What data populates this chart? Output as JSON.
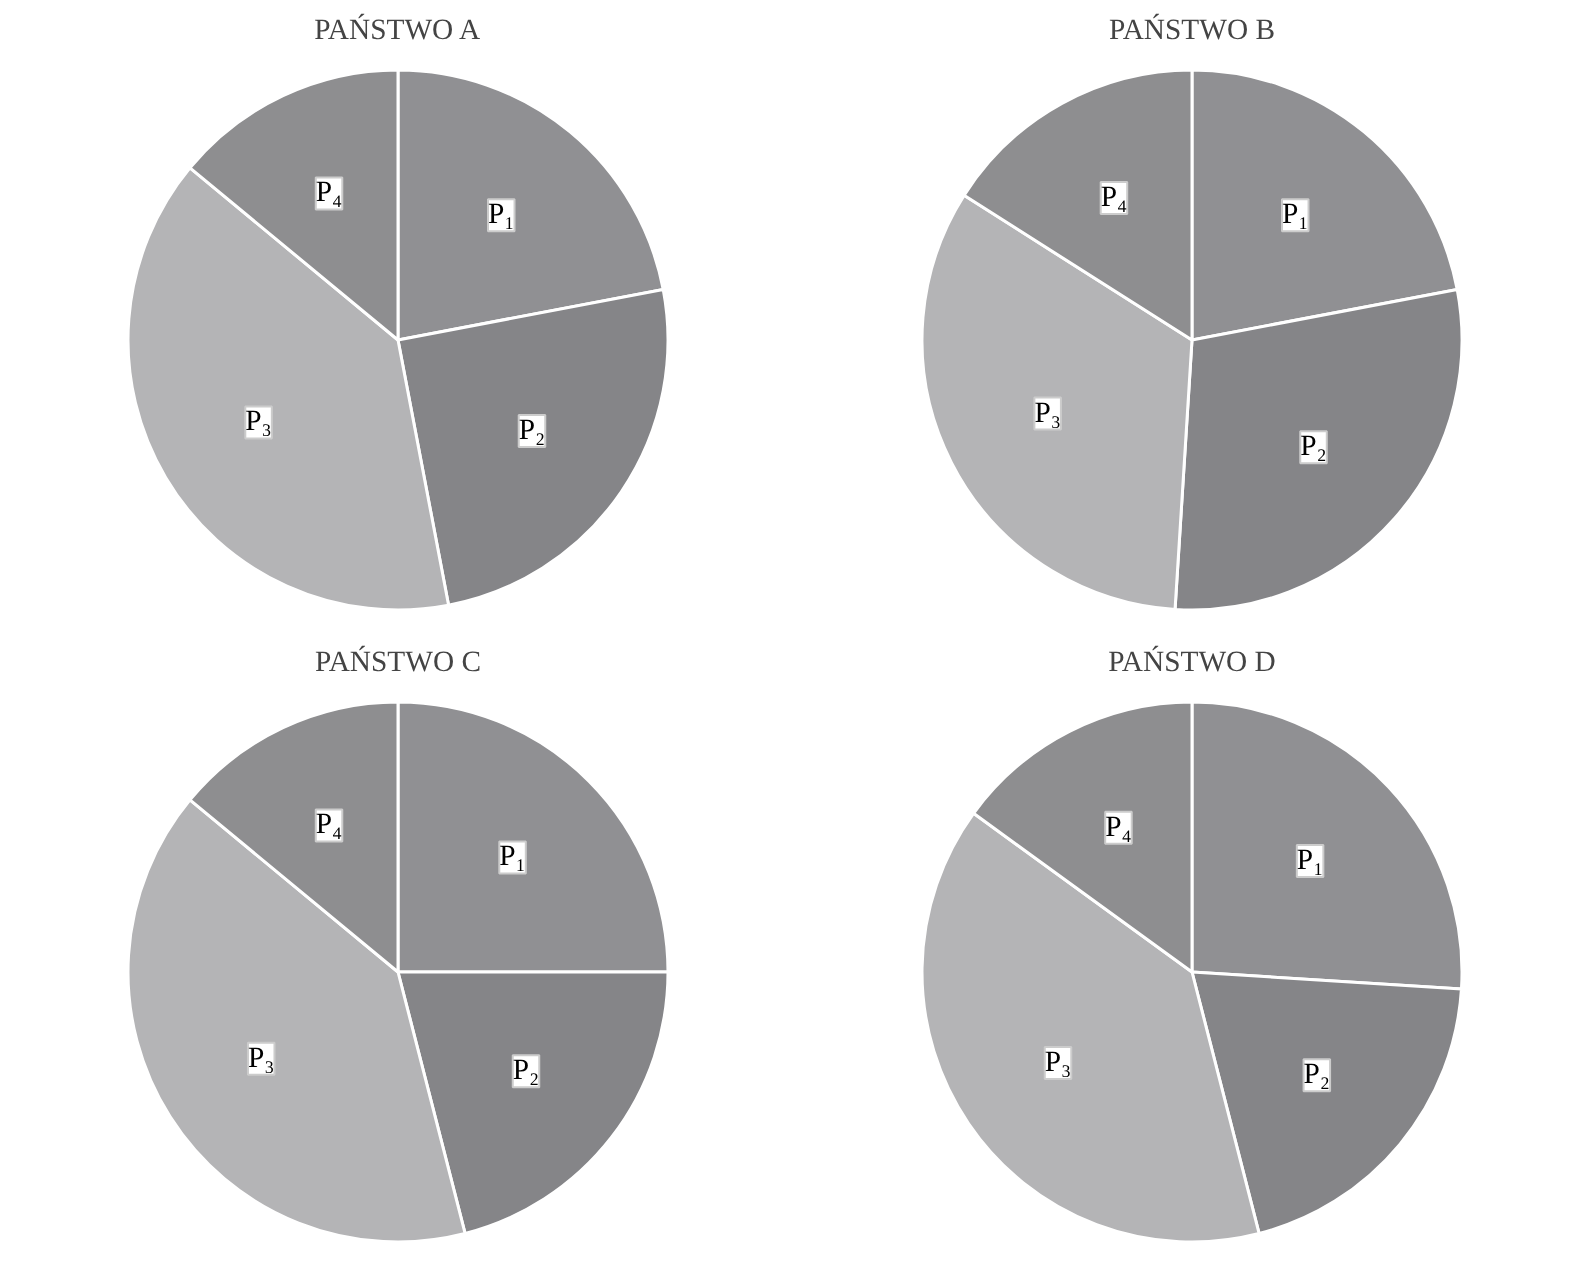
{
  "chart_data": [
    {
      "type": "pie",
      "title": "PAŃSTWO A",
      "categories": [
        "P₁",
        "P₂",
        "P₃",
        "P₄"
      ],
      "values": [
        22,
        25,
        39,
        14
      ],
      "colors": [
        "#909093",
        "#858588",
        "#b4b4b6",
        "#8e8e90"
      ]
    },
    {
      "type": "pie",
      "title": "PAŃSTWO B",
      "categories": [
        "P₁",
        "P₂",
        "P₃",
        "P₄"
      ],
      "values": [
        22,
        29,
        33,
        16
      ],
      "colors": [
        "#909093",
        "#858588",
        "#b4b4b6",
        "#8e8e90"
      ]
    },
    {
      "type": "pie",
      "title": "PAŃSTWO C",
      "categories": [
        "P₁",
        "P₂",
        "P₃",
        "P₄"
      ],
      "values": [
        25,
        21,
        40,
        14
      ],
      "colors": [
        "#909093",
        "#858588",
        "#b4b4b6",
        "#8e8e90"
      ]
    },
    {
      "type": "pie",
      "title": "PAŃSTWO D",
      "categories": [
        "P₁",
        "P₂",
        "P₃",
        "P₄"
      ],
      "values": [
        26,
        20,
        39,
        15
      ],
      "colors": [
        "#909093",
        "#858588",
        "#b4b4b6",
        "#8e8e90"
      ]
    }
  ]
}
